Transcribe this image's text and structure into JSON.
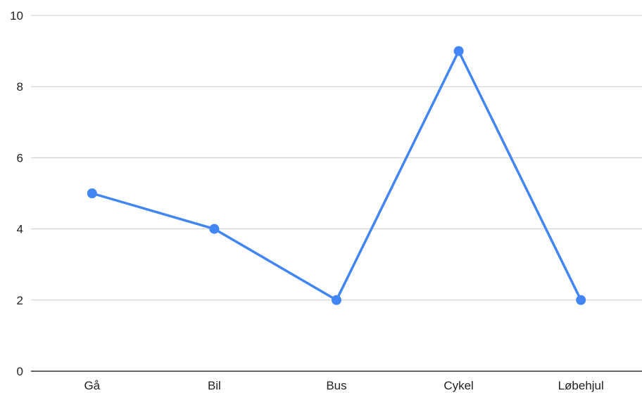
{
  "chart_data": {
    "type": "line",
    "categories": [
      "Gå",
      "Bil",
      "Bus",
      "Cykel",
      "Løbehjul"
    ],
    "series": [
      {
        "values": [
          5,
          4,
          2,
          9,
          2
        ],
        "color": "#4285f4"
      }
    ],
    "ylim": [
      0,
      10
    ],
    "yticks": [
      0,
      2,
      4,
      6,
      8,
      10
    ],
    "grid": true,
    "title": "",
    "xlabel": "",
    "ylabel": ""
  }
}
